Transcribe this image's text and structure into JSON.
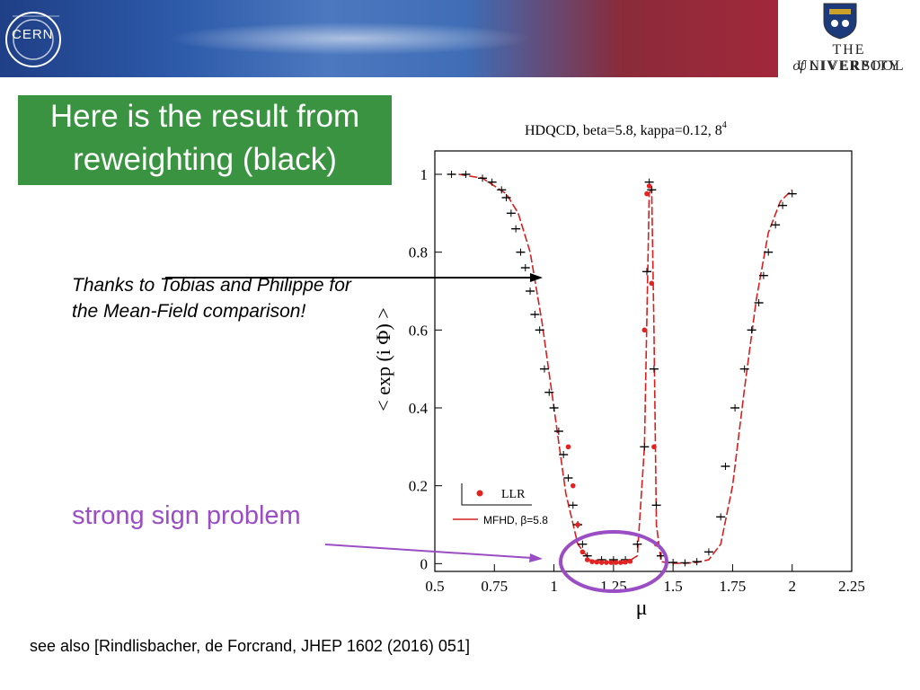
{
  "logos": {
    "cern": "CERN",
    "university_line1": "THE UNIVERSITY",
    "university_of": "of",
    "university_line2": "LIVERPOOL"
  },
  "title": {
    "line1": "Here is the result from",
    "line2": "reweighting (black)"
  },
  "notes": {
    "thanks": "Thanks to Tobias and Philippe for the Mean-Field comparison!",
    "strong_sign": "strong sign problem",
    "reference": "see also [Rindlisbacher, de Forcrand, JHEP 1602 (2016) 051]"
  },
  "colors": {
    "title_bg": "#3a9340",
    "llr": "#e32222",
    "mfhd": "#d42020",
    "reweighting": "#000000",
    "annotation": "#9a4dc4"
  },
  "chart_data": {
    "type": "scatter",
    "title": "HDQCD, beta=5.8, kappa=0.12, 8",
    "title_sup": "4",
    "xlabel": "μ",
    "ylabel": "< exp (i Φ) >",
    "xlim": [
      0.5,
      2.25
    ],
    "ylim": [
      -0.02,
      1.06
    ],
    "xticks": [
      0.5,
      0.75,
      1,
      1.25,
      1.5,
      1.75,
      2,
      2.25
    ],
    "xtick_labels": [
      "0.5",
      "0.75",
      "1",
      "1.25",
      "1.5",
      "1.75",
      "2",
      "2.25"
    ],
    "yticks": [
      0,
      0.2,
      0.4,
      0.6,
      0.8,
      1
    ],
    "ytick_labels": [
      "0",
      "0.2",
      "0.4",
      "0.6",
      "0.8",
      "1"
    ],
    "legend": {
      "position": "bottom-left",
      "llr": "LLR",
      "mfhd": "MFHD, β=5.8"
    },
    "series": [
      {
        "name": "LLR",
        "style": "markers",
        "x": [
          1.06,
          1.08,
          1.1,
          1.12,
          1.14,
          1.16,
          1.18,
          1.2,
          1.22,
          1.24,
          1.26,
          1.28,
          1.3,
          1.32,
          1.38,
          1.39,
          1.4,
          1.41,
          1.42,
          1.43
        ],
        "y": [
          0.3,
          0.2,
          0.1,
          0.03,
          0.01,
          0.005,
          0.004,
          0.003,
          0.003,
          0.003,
          0.003,
          0.003,
          0.004,
          0.006,
          0.6,
          0.95,
          0.97,
          0.72,
          0.3,
          0.05
        ]
      },
      {
        "name": "MFHD, β=5.8",
        "style": "dashed-line",
        "x": [
          0.6,
          0.7,
          0.8,
          0.85,
          0.9,
          0.95,
          1.0,
          1.05,
          1.1,
          1.15,
          1.2,
          1.25,
          1.3,
          1.35,
          1.38,
          1.4,
          1.41,
          1.42,
          1.43,
          1.45,
          1.5,
          1.55,
          1.6,
          1.65,
          1.7,
          1.75,
          1.8,
          1.85,
          1.9,
          1.95,
          2.0
        ],
        "y": [
          1.0,
          0.99,
          0.95,
          0.9,
          0.8,
          0.62,
          0.4,
          0.18,
          0.05,
          0.01,
          0.003,
          0.001,
          0.001,
          0.02,
          0.3,
          0.95,
          0.97,
          0.6,
          0.1,
          0.005,
          0.001,
          0.001,
          0.003,
          0.01,
          0.05,
          0.2,
          0.45,
          0.68,
          0.85,
          0.93,
          0.96
        ]
      },
      {
        "name": "",
        "style": "error-bars",
        "x": [
          0.57,
          0.63,
          0.7,
          0.74,
          0.78,
          0.8,
          0.82,
          0.84,
          0.86,
          0.88,
          0.9,
          0.92,
          0.94,
          0.96,
          0.98,
          1.0,
          1.02,
          1.04,
          1.06,
          1.08,
          1.1,
          1.12,
          1.14,
          1.2,
          1.25,
          1.3,
          1.35,
          1.38,
          1.39,
          1.4,
          1.41,
          1.42,
          1.43,
          1.45,
          1.5,
          1.55,
          1.6,
          1.65,
          1.7,
          1.72,
          1.76,
          1.8,
          1.83,
          1.86,
          1.88,
          1.9,
          1.93,
          1.96,
          2.0
        ],
        "y": [
          1.0,
          1.0,
          0.99,
          0.98,
          0.96,
          0.94,
          0.9,
          0.86,
          0.8,
          0.76,
          0.7,
          0.64,
          0.6,
          0.5,
          0.44,
          0.4,
          0.34,
          0.28,
          0.22,
          0.15,
          0.1,
          0.05,
          0.02,
          0.01,
          0.01,
          0.01,
          0.05,
          0.3,
          0.75,
          0.98,
          0.96,
          0.5,
          0.15,
          0.02,
          0.003,
          0.002,
          0.005,
          0.03,
          0.12,
          0.25,
          0.4,
          0.5,
          0.6,
          0.67,
          0.74,
          0.8,
          0.87,
          0.92,
          0.95
        ]
      }
    ]
  }
}
